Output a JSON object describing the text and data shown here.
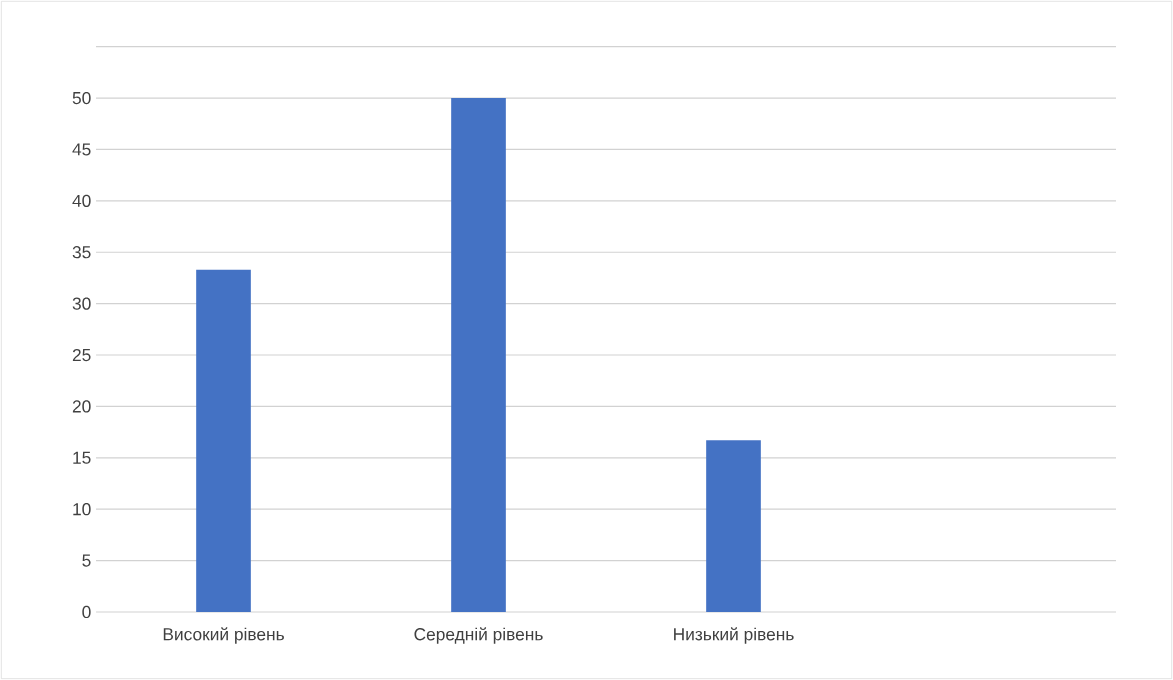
{
  "chart_data": {
    "type": "bar",
    "categories": [
      "Високий рівень",
      "Середній рівень",
      "Низький рівень",
      null
    ],
    "values": [
      33.3,
      50,
      16.7,
      null
    ],
    "color": "#4472c4",
    "ylim": [
      0,
      55
    ],
    "yticks": [
      0,
      5,
      10,
      15,
      20,
      25,
      30,
      35,
      40,
      45,
      50,
      {
        "value": 55,
        "label": null
      }
    ],
    "grid": "y"
  }
}
